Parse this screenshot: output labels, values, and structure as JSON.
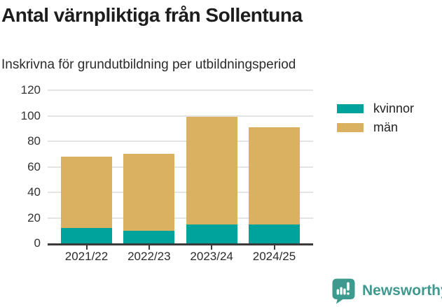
{
  "chart_data": {
    "type": "bar",
    "stacked": true,
    "title": "Antal värnpliktiga från Sollentuna",
    "subtitle": "Inskrivna för grundutbildning per utbildningsperiod",
    "categories": [
      "2021/22",
      "2022/23",
      "2023/24",
      "2024/25"
    ],
    "series": [
      {
        "name": "kvinnor",
        "color": "#00A39B",
        "values": [
          12,
          10,
          15,
          15
        ]
      },
      {
        "name": "män",
        "color": "#D9B160",
        "values": [
          56,
          60,
          84,
          76
        ]
      }
    ],
    "totals": [
      68,
      70,
      99,
      91
    ],
    "xlabel": "",
    "ylabel": "",
    "ylim": [
      0,
      120
    ],
    "yticks": [
      0,
      20,
      40,
      60,
      80,
      100,
      120
    ],
    "grid": true,
    "legend_position": "right"
  },
  "footer": {
    "brand": "Newsworthy",
    "logo_icon": "speech-bubble-bar-chart-exclamation",
    "brand_color": "#3E998F"
  },
  "colors": {
    "background": "#ffffff",
    "axis_line": "#3a3a3a",
    "gridline": "#e4e4e4",
    "tick_text": "#333333",
    "title_text": "#1d1d1d"
  }
}
